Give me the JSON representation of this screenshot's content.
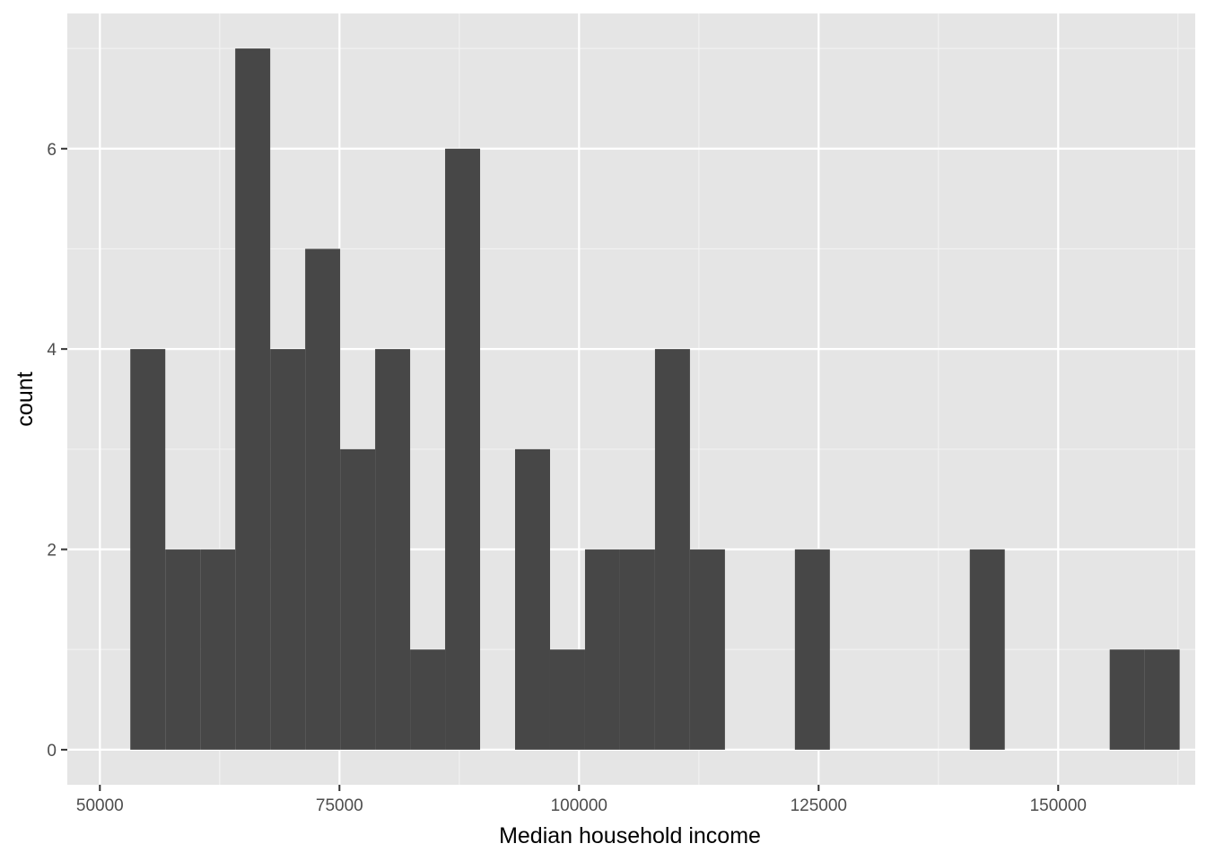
{
  "chart_data": {
    "type": "bar",
    "subtype": "histogram",
    "title": "",
    "xlabel": "Median household income",
    "ylabel": "count",
    "bin_width": 3650,
    "bins": [
      {
        "x_center": 55000,
        "count": 4
      },
      {
        "x_center": 58650,
        "count": 2
      },
      {
        "x_center": 62300,
        "count": 2
      },
      {
        "x_center": 65950,
        "count": 7
      },
      {
        "x_center": 69600,
        "count": 4
      },
      {
        "x_center": 73250,
        "count": 5
      },
      {
        "x_center": 76900,
        "count": 3
      },
      {
        "x_center": 80550,
        "count": 4
      },
      {
        "x_center": 84200,
        "count": 1
      },
      {
        "x_center": 87850,
        "count": 6
      },
      {
        "x_center": 91500,
        "count": 0
      },
      {
        "x_center": 95150,
        "count": 3
      },
      {
        "x_center": 98800,
        "count": 1
      },
      {
        "x_center": 102450,
        "count": 2
      },
      {
        "x_center": 106100,
        "count": 2
      },
      {
        "x_center": 109750,
        "count": 4
      },
      {
        "x_center": 113400,
        "count": 2
      },
      {
        "x_center": 117050,
        "count": 0
      },
      {
        "x_center": 120700,
        "count": 0
      },
      {
        "x_center": 124350,
        "count": 2
      },
      {
        "x_center": 128000,
        "count": 0
      },
      {
        "x_center": 131650,
        "count": 0
      },
      {
        "x_center": 135300,
        "count": 0
      },
      {
        "x_center": 138950,
        "count": 0
      },
      {
        "x_center": 142600,
        "count": 2
      },
      {
        "x_center": 146250,
        "count": 0
      },
      {
        "x_center": 149900,
        "count": 0
      },
      {
        "x_center": 153550,
        "count": 0
      },
      {
        "x_center": 157200,
        "count": 1
      },
      {
        "x_center": 160850,
        "count": 1
      }
    ],
    "x_ticks": [
      50000,
      75000,
      100000,
      125000,
      150000
    ],
    "x_tick_labels": [
      "50000",
      "75000",
      "100000",
      "125000",
      "150000"
    ],
    "y_ticks": [
      0,
      2,
      4,
      6
    ],
    "y_tick_labels": [
      "0",
      "2",
      "4",
      "6"
    ],
    "xlim": [
      46600,
      164300
    ],
    "ylim": [
      -0.35,
      7.35
    ],
    "grid": true,
    "legend": "none",
    "colors": {
      "panel_background": "#e5e5e5",
      "grid_major": "#ffffff",
      "grid_minor": "#f2f2f2",
      "bar_fill": "#474747"
    }
  }
}
